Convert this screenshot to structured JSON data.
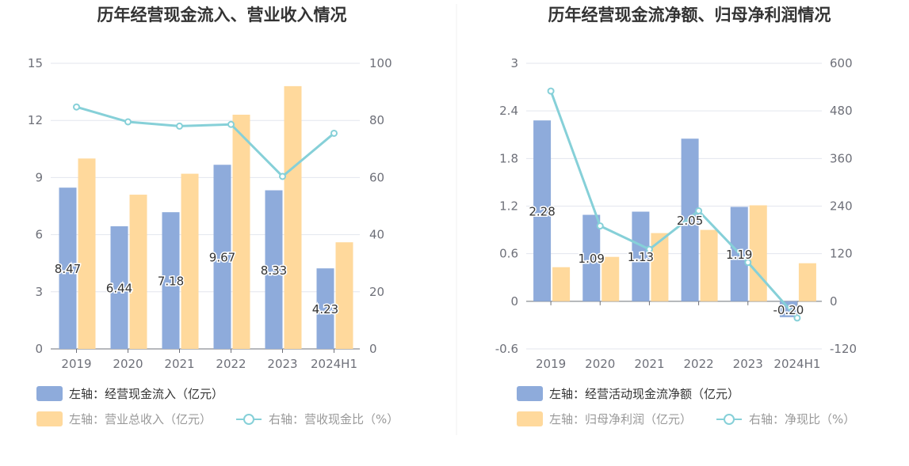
{
  "chart_data": [
    {
      "type": "bar",
      "title": "历年经营现金流入、营业收入情况",
      "categories": [
        "2019",
        "2020",
        "2021",
        "2022",
        "2023",
        "2024H1"
      ],
      "y_left": {
        "ticks": [
          "15",
          "12",
          "9",
          "6",
          "3",
          "0"
        ],
        "lim": [
          0,
          15
        ]
      },
      "y_right": {
        "ticks": [
          "100",
          "80",
          "60",
          "40",
          "20",
          "0"
        ],
        "lim": [
          0,
          100
        ]
      },
      "series": [
        {
          "name": "左轴：经营现金流入（亿元）",
          "kind": "bar",
          "axis": "left",
          "color": "#8eabdb",
          "values": [
            8.47,
            6.44,
            7.18,
            9.67,
            8.33,
            4.23
          ],
          "labels": [
            "8.47",
            "6.44",
            "7.18",
            "9.67",
            "8.33",
            "4.23"
          ]
        },
        {
          "name": "左轴：营业总收入（亿元）",
          "kind": "bar",
          "axis": "left",
          "color": "#ffd99c",
          "values": [
            10.0,
            8.1,
            9.2,
            12.3,
            13.8,
            5.6
          ]
        },
        {
          "name": "右轴：营收现金比（%）",
          "kind": "line",
          "axis": "right",
          "color": "#86d0d8",
          "values": [
            84.7,
            79.5,
            78.0,
            78.6,
            60.4,
            75.5
          ]
        }
      ],
      "legend_position": "bottom",
      "grid": true
    },
    {
      "type": "bar",
      "title": "历年经营现金流净额、归母净利润情况",
      "categories": [
        "2019",
        "2020",
        "2021",
        "2022",
        "2023",
        "2024H1"
      ],
      "y_left": {
        "ticks": [
          "3",
          "2.4",
          "1.8",
          "1.2",
          "0.6",
          "0",
          "-0.6"
        ],
        "lim": [
          -0.6,
          3
        ]
      },
      "y_right": {
        "ticks": [
          "600",
          "480",
          "360",
          "240",
          "120",
          "0",
          "-120"
        ],
        "lim": [
          -120,
          600
        ]
      },
      "series": [
        {
          "name": "左轴：经营活动现金流净额（亿元）",
          "kind": "bar",
          "axis": "left",
          "color": "#8eabdb",
          "values": [
            2.28,
            1.09,
            1.13,
            2.05,
            1.19,
            -0.2
          ],
          "labels": [
            "2.28",
            "1.09",
            "1.13",
            "2.05",
            "1.19",
            "-0.20"
          ]
        },
        {
          "name": "左轴：归母净利润（亿元）",
          "kind": "bar",
          "axis": "left",
          "color": "#ffd99c",
          "values": [
            0.43,
            0.56,
            0.86,
            0.9,
            1.21,
            0.48
          ]
        },
        {
          "name": "右轴：净现比（%）",
          "kind": "line",
          "axis": "right",
          "color": "#86d0d8",
          "values": [
            530,
            190,
            131,
            228,
            98,
            -42
          ]
        }
      ],
      "legend_position": "bottom",
      "grid": true
    }
  ]
}
